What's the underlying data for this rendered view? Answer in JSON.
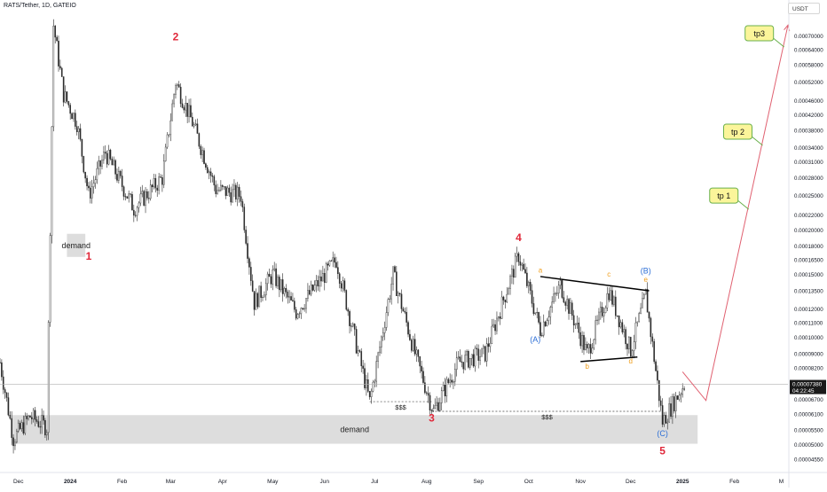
{
  "header": {
    "title": "RATS/Tether, 1D, GATEIO",
    "currency": "USDT"
  },
  "colors": {
    "up": "#2a2a2a",
    "down": "#2a2a2a",
    "wave_main": "#e0283a",
    "wave_corr": "#2d6fd6",
    "sub_wave": "#f0a020",
    "projection": "#e06070",
    "zone": "#dddddd",
    "target_fill": "#fbf59a",
    "target_border": "#6ab04c",
    "last_price_bg": "#1a1a1a"
  },
  "chart_data": {
    "type": "candlestick",
    "title": "RATS/Tether, 1D, GATEIO",
    "yscale": "log",
    "ylim": [
      4.3e-05,
      8e-05
    ],
    "xlim": [
      "2023-11-20",
      "2025-03-05"
    ],
    "x_ticks": [
      {
        "label": "Dec",
        "date": "2023-12-01"
      },
      {
        "label": "2024",
        "date": "2024-01-01",
        "bold": true
      },
      {
        "label": "Feb",
        "date": "2024-02-01"
      },
      {
        "label": "Mar",
        "date": "2024-03-01"
      },
      {
        "label": "Apr",
        "date": "2024-04-01"
      },
      {
        "label": "May",
        "date": "2024-05-01"
      },
      {
        "label": "Jun",
        "date": "2024-06-01"
      },
      {
        "label": "Jul",
        "date": "2024-07-01"
      },
      {
        "label": "Aug",
        "date": "2024-08-01"
      },
      {
        "label": "Sep",
        "date": "2024-09-01"
      },
      {
        "label": "Oct",
        "date": "2024-10-01"
      },
      {
        "label": "Nov",
        "date": "2024-11-01"
      },
      {
        "label": "Dec",
        "date": "2024-12-01"
      },
      {
        "label": "2025",
        "date": "2025-01-01",
        "bold": true
      },
      {
        "label": "Feb",
        "date": "2025-02-01"
      },
      {
        "label": "M",
        "date": "2025-03-01"
      }
    ],
    "y_ticks": [
      "0.00070000",
      "0.00064000",
      "0.00058000",
      "0.00052000",
      "0.00046000",
      "0.00042000",
      "0.00038000",
      "0.00034000",
      "0.00031000",
      "0.00028000",
      "0.00025000",
      "0.00022000",
      "0.00020000",
      "0.00018000",
      "0.00016500",
      "0.00015000",
      "0.00013500",
      "0.00012000",
      "0.00011000",
      "0.00010000",
      "0.00009000",
      "0.00008200",
      "0.00006700",
      "0.00006100",
      "0.00005500",
      "0.00005000",
      "0.00004550"
    ],
    "last_price": {
      "value": "0.00007380",
      "countdown": "04:22:45"
    },
    "key_points": [
      {
        "date": "2023-11-20",
        "price": 8.5e-05
      },
      {
        "date": "2023-11-28",
        "price": 5.2e-05
      },
      {
        "date": "2023-12-08",
        "price": 6e-05
      },
      {
        "date": "2023-12-18",
        "price": 5.6e-05
      },
      {
        "date": "2023-12-22",
        "price": 0.00075
      },
      {
        "date": "2023-12-28",
        "price": 0.00048
      },
      {
        "date": "2024-01-05",
        "price": 0.0004
      },
      {
        "date": "2024-01-12",
        "price": 0.00025
      },
      {
        "date": "2024-01-22",
        "price": 0.00033
      },
      {
        "date": "2024-02-08",
        "price": 0.00023
      },
      {
        "date": "2024-02-25",
        "price": 0.00028
      },
      {
        "date": "2024-03-04",
        "price": 0.00052
      },
      {
        "date": "2024-03-14",
        "price": 0.0004
      },
      {
        "date": "2024-03-28",
        "price": 0.00026
      },
      {
        "date": "2024-04-12",
        "price": 0.00025
      },
      {
        "date": "2024-04-20",
        "price": 0.000125
      },
      {
        "date": "2024-05-01",
        "price": 0.00015
      },
      {
        "date": "2024-05-15",
        "price": 0.000118
      },
      {
        "date": "2024-06-08",
        "price": 0.000165
      },
      {
        "date": "2024-06-28",
        "price": 6.6e-05
      },
      {
        "date": "2024-07-12",
        "price": 0.00015
      },
      {
        "date": "2024-07-25",
        "price": 9e-05
      },
      {
        "date": "2024-08-05",
        "price": 6.2e-05
      },
      {
        "date": "2024-08-20",
        "price": 8.5e-05
      },
      {
        "date": "2024-09-05",
        "price": 9e-05
      },
      {
        "date": "2024-09-25",
        "price": 0.00017
      },
      {
        "date": "2024-10-08",
        "price": 0.000105
      },
      {
        "date": "2024-10-20",
        "price": 0.00014
      },
      {
        "date": "2024-11-05",
        "price": 9e-05
      },
      {
        "date": "2024-11-18",
        "price": 0.000135
      },
      {
        "date": "2024-12-01",
        "price": 9.2e-05
      },
      {
        "date": "2024-12-10",
        "price": 0.000132
      },
      {
        "date": "2024-12-20",
        "price": 5.8e-05
      },
      {
        "date": "2025-01-02",
        "price": 7.38e-05
      }
    ],
    "zones": [
      {
        "label": "demand",
        "from": "2023-11-27",
        "to": "2025-01-10",
        "top": 6.05e-05,
        "bottom": 5.03e-05
      },
      {
        "label": "demand",
        "from": "2023-12-30",
        "to": "2024-01-10",
        "top": 0.000195,
        "bottom": 0.000168
      }
    ],
    "liquidity_lines": [
      {
        "label": "$$$",
        "from": "2024-06-28",
        "to": "2024-08-04",
        "price": 6.6e-05
      },
      {
        "label": "$$$",
        "from": "2024-08-04",
        "to": "2024-12-20",
        "price": 6.2e-05
      }
    ],
    "wave_labels": [
      {
        "text": "1",
        "date": "2024-01-12",
        "price": 0.000165,
        "kind": "main"
      },
      {
        "text": "2",
        "date": "2024-03-04",
        "price": 0.00068,
        "kind": "main"
      },
      {
        "text": "3",
        "date": "2024-08-04",
        "price": 5.8e-05,
        "kind": "main"
      },
      {
        "text": "4",
        "date": "2024-09-25",
        "price": 0.000186,
        "kind": "main"
      },
      {
        "text": "5",
        "date": "2024-12-20",
        "price": 4.7e-05,
        "kind": "main"
      },
      {
        "text": "(A)",
        "date": "2024-10-05",
        "price": 9.7e-05,
        "kind": "corr"
      },
      {
        "text": "(B)",
        "date": "2024-12-10",
        "price": 0.000151,
        "kind": "corr"
      },
      {
        "text": "(C)",
        "date": "2024-12-20",
        "price": 5.28e-05,
        "kind": "corr"
      },
      {
        "text": "a",
        "date": "2024-10-08",
        "price": 0.000152,
        "kind": "sub"
      },
      {
        "text": "b",
        "date": "2024-11-05",
        "price": 8.15e-05,
        "kind": "sub"
      },
      {
        "text": "c",
        "date": "2024-11-18",
        "price": 0.000148,
        "kind": "sub"
      },
      {
        "text": "d",
        "date": "2024-12-01",
        "price": 8.45e-05,
        "kind": "sub"
      },
      {
        "text": "e",
        "date": "2024-12-10",
        "price": 0.000143,
        "kind": "sub"
      }
    ],
    "triangle_lines": [
      {
        "from": {
          "date": "2024-10-08",
          "price": 0.000148
        },
        "to": {
          "date": "2024-12-12",
          "price": 0.000135
        }
      },
      {
        "from": {
          "date": "2024-11-01",
          "price": 8.55e-05
        },
        "to": {
          "date": "2024-12-05",
          "price": 8.8e-05
        }
      }
    ],
    "projection": [
      {
        "date": "2025-01-01",
        "price": 8e-05
      },
      {
        "date": "2025-01-15",
        "price": 6.65e-05
      },
      {
        "date": "2025-03-05",
        "price": 0.00075
      }
    ],
    "targets": [
      {
        "label": "tp 1",
        "date": "2025-02-20",
        "price": 0.000235
      },
      {
        "label": "tp 2",
        "date": "2025-02-23",
        "price": 0.000355
      },
      {
        "label": "tp3",
        "date": "2025-02-28",
        "price": 0.00067
      }
    ]
  }
}
